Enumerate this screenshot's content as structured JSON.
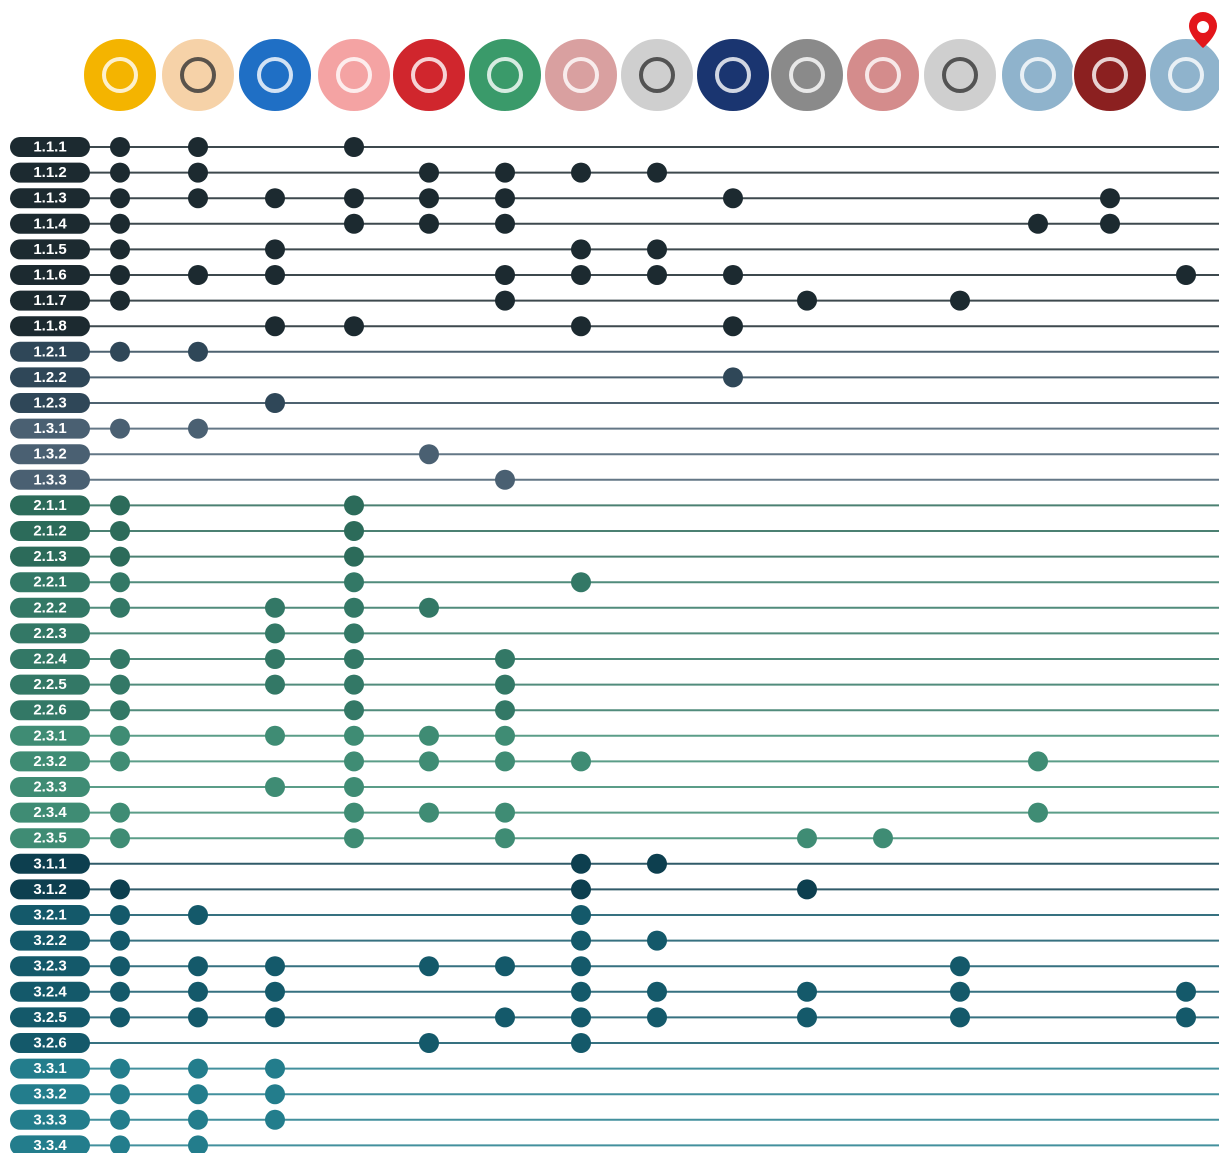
{
  "groups": {
    "1.1": "#1c2a30",
    "1.2": "#2f4758",
    "1.3": "#4a6072",
    "2.1": "#2c6b5a",
    "2.2": "#337866",
    "2.3": "#3f8c74",
    "3.1": "#0d3f4f",
    "3.2": "#14596a",
    "3.3": "#237d8c"
  },
  "rows": [
    {
      "label": "1.1.1",
      "group": "1.1",
      "dots": [
        0,
        1,
        3
      ]
    },
    {
      "label": "1.1.2",
      "group": "1.1",
      "dots": [
        0,
        1,
        4,
        5,
        6,
        7
      ]
    },
    {
      "label": "1.1.3",
      "group": "1.1",
      "dots": [
        0,
        1,
        2,
        3,
        4,
        5,
        8,
        13
      ]
    },
    {
      "label": "1.1.4",
      "group": "1.1",
      "dots": [
        0,
        3,
        4,
        5,
        12,
        13
      ]
    },
    {
      "label": "1.1.5",
      "group": "1.1",
      "dots": [
        0,
        2,
        6,
        7
      ]
    },
    {
      "label": "1.1.6",
      "group": "1.1",
      "dots": [
        0,
        1,
        2,
        5,
        6,
        7,
        8,
        14
      ]
    },
    {
      "label": "1.1.7",
      "group": "1.1",
      "dots": [
        0,
        5,
        9,
        11
      ]
    },
    {
      "label": "1.1.8",
      "group": "1.1",
      "dots": [
        2,
        3,
        6,
        8
      ]
    },
    {
      "label": "1.2.1",
      "group": "1.2",
      "dots": [
        0,
        1
      ]
    },
    {
      "label": "1.2.2",
      "group": "1.2",
      "dots": [
        8
      ]
    },
    {
      "label": "1.2.3",
      "group": "1.2",
      "dots": [
        2
      ]
    },
    {
      "label": "1.3.1",
      "group": "1.3",
      "dots": [
        0,
        1
      ]
    },
    {
      "label": "1.3.2",
      "group": "1.3",
      "dots": [
        4
      ]
    },
    {
      "label": "1.3.3",
      "group": "1.3",
      "dots": [
        5
      ]
    },
    {
      "label": "2.1.1",
      "group": "2.1",
      "dots": [
        0,
        3
      ]
    },
    {
      "label": "2.1.2",
      "group": "2.1",
      "dots": [
        0,
        3
      ]
    },
    {
      "label": "2.1.3",
      "group": "2.1",
      "dots": [
        0,
        3
      ]
    },
    {
      "label": "2.2.1",
      "group": "2.2",
      "dots": [
        0,
        3,
        6
      ]
    },
    {
      "label": "2.2.2",
      "group": "2.2",
      "dots": [
        0,
        2,
        3,
        4
      ]
    },
    {
      "label": "2.2.3",
      "group": "2.2",
      "dots": [
        2,
        3
      ]
    },
    {
      "label": "2.2.4",
      "group": "2.2",
      "dots": [
        0,
        2,
        3,
        5
      ]
    },
    {
      "label": "2.2.5",
      "group": "2.2",
      "dots": [
        0,
        2,
        3,
        5
      ]
    },
    {
      "label": "2.2.6",
      "group": "2.2",
      "dots": [
        0,
        3,
        5
      ]
    },
    {
      "label": "2.3.1",
      "group": "2.3",
      "dots": [
        0,
        2,
        3,
        4,
        5
      ]
    },
    {
      "label": "2.3.2",
      "group": "2.3",
      "dots": [
        0,
        3,
        4,
        5,
        6,
        12
      ]
    },
    {
      "label": "2.3.3",
      "group": "2.3",
      "dots": [
        2,
        3
      ]
    },
    {
      "label": "2.3.4",
      "group": "2.3",
      "dots": [
        0,
        3,
        4,
        5,
        12
      ]
    },
    {
      "label": "2.3.5",
      "group": "2.3",
      "dots": [
        0,
        3,
        5,
        9,
        10
      ]
    },
    {
      "label": "3.1.1",
      "group": "3.1",
      "dots": [
        6,
        7
      ]
    },
    {
      "label": "3.1.2",
      "group": "3.1",
      "dots": [
        0,
        6,
        9
      ]
    },
    {
      "label": "3.2.1",
      "group": "3.2",
      "dots": [
        0,
        1,
        6
      ]
    },
    {
      "label": "3.2.2",
      "group": "3.2",
      "dots": [
        0,
        6,
        7
      ]
    },
    {
      "label": "3.2.3",
      "group": "3.2",
      "dots": [
        0,
        1,
        2,
        4,
        5,
        6,
        11
      ]
    },
    {
      "label": "3.2.4",
      "group": "3.2",
      "dots": [
        0,
        1,
        2,
        6,
        7,
        9,
        11,
        14
      ]
    },
    {
      "label": "3.2.5",
      "group": "3.2",
      "dots": [
        0,
        1,
        2,
        5,
        6,
        7,
        9,
        11,
        14
      ]
    },
    {
      "label": "3.2.6",
      "group": "3.2",
      "dots": [
        4,
        6
      ]
    },
    {
      "label": "3.3.1",
      "group": "3.3",
      "dots": [
        0,
        1,
        2
      ]
    },
    {
      "label": "3.3.2",
      "group": "3.3",
      "dots": [
        0,
        1,
        2
      ]
    },
    {
      "label": "3.3.3",
      "group": "3.3",
      "dots": [
        0,
        1,
        2
      ]
    },
    {
      "label": "3.3.4",
      "group": "3.3",
      "dots": [
        0,
        1
      ]
    }
  ]
}
